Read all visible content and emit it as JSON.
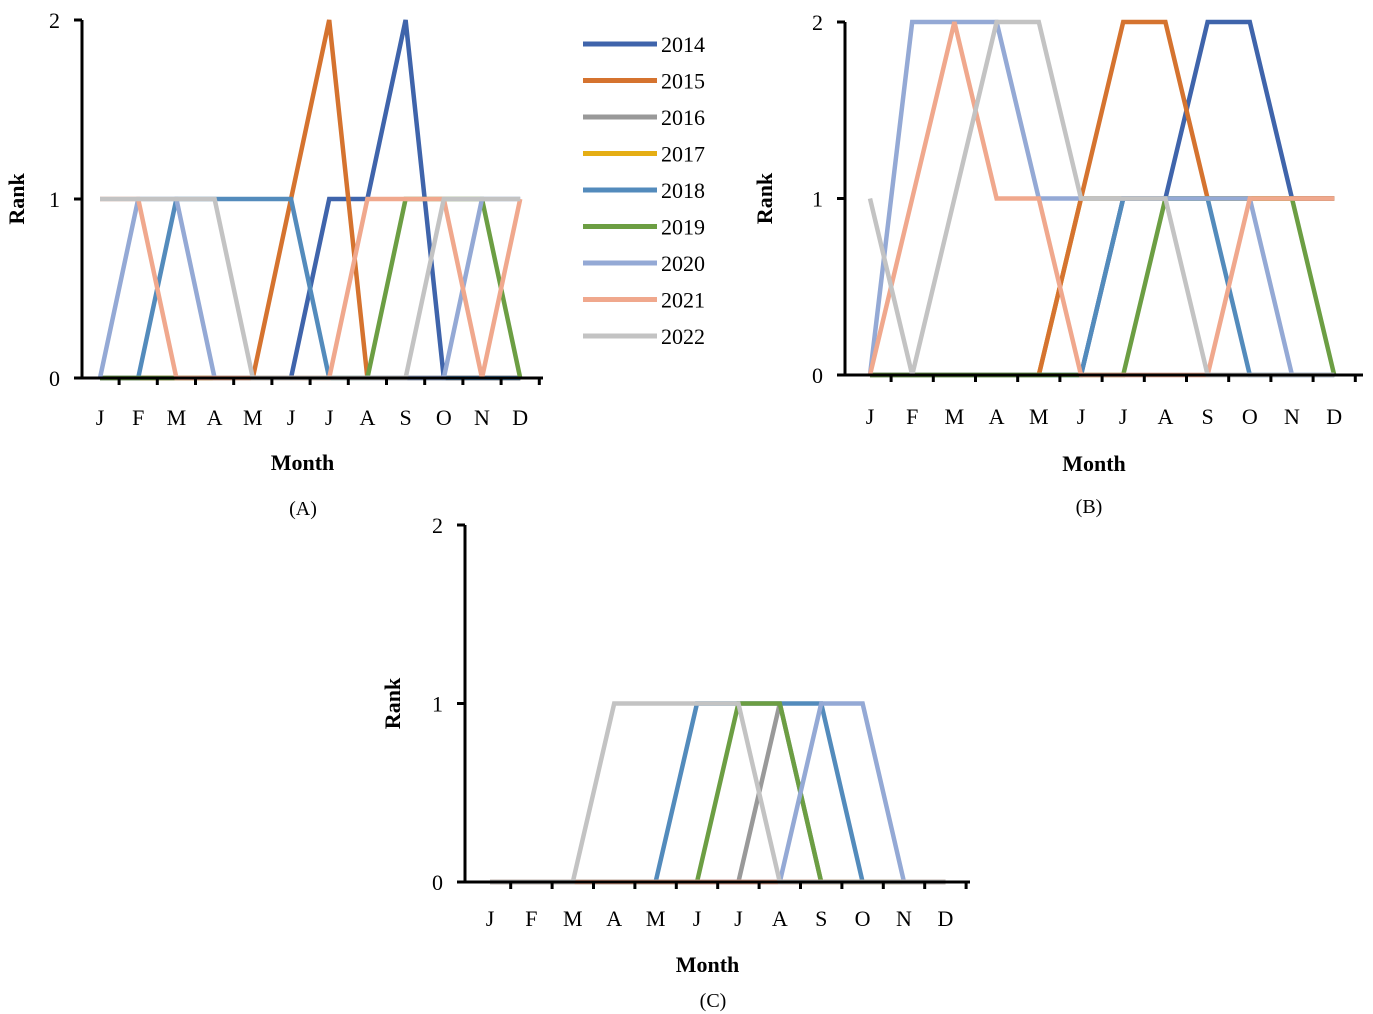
{
  "figure": {
    "legend_entries": [
      "2014",
      "2015",
      "2016",
      "2017",
      "2018",
      "2019",
      "2020",
      "2021",
      "2022"
    ]
  },
  "series_colors": {
    "2014": "#3F64AB",
    "2015": "#D5732F",
    "2016": "#999999",
    "2017": "#E5AE14",
    "2018": "#538BBC",
    "2019": "#6C9E43",
    "2020": "#94A9D5",
    "2021": "#F0A88D",
    "2022": "#C3C3C3"
  },
  "chart_data": [
    {
      "type": "line",
      "panel_label": "(A)",
      "xlabel": "Month",
      "ylabel": "Rank",
      "categories": [
        "J",
        "F",
        "M",
        "A",
        "M",
        "J",
        "J",
        "A",
        "S",
        "O",
        "N",
        "D"
      ],
      "ylim": [
        0,
        2
      ],
      "yticks": [
        "0",
        "1",
        "2"
      ],
      "legend": "right",
      "series": [
        {
          "name": "2014",
          "values": [
            0,
            0,
            0,
            0,
            0,
            0,
            1,
            1,
            2,
            0,
            0,
            0
          ]
        },
        {
          "name": "2015",
          "values": [
            0,
            0,
            0,
            0,
            0,
            1,
            2,
            0,
            0,
            0,
            0,
            0
          ]
        },
        {
          "name": "2016",
          "values": [
            0,
            0,
            0,
            0,
            0,
            0,
            0,
            0,
            0,
            0,
            0,
            0
          ]
        },
        {
          "name": "2017",
          "values": [
            0,
            0,
            0,
            0,
            0,
            0,
            0,
            0,
            0,
            0,
            0,
            0
          ]
        },
        {
          "name": "2018",
          "values": [
            0,
            0,
            1,
            1,
            1,
            1,
            0,
            0,
            0,
            0,
            0,
            0
          ]
        },
        {
          "name": "2019",
          "values": [
            0,
            0,
            0,
            0,
            0,
            0,
            0,
            0,
            1,
            1,
            1,
            0
          ]
        },
        {
          "name": "2020",
          "values": [
            0,
            1,
            1,
            0,
            0,
            0,
            0,
            0,
            0,
            0,
            1,
            1
          ]
        },
        {
          "name": "2021",
          "values": [
            1,
            1,
            0,
            0,
            0,
            0,
            0,
            1,
            1,
            1,
            0,
            1
          ]
        },
        {
          "name": "2022",
          "values": [
            1,
            1,
            1,
            1,
            0,
            0,
            0,
            0,
            0,
            1,
            1,
            1
          ]
        }
      ]
    },
    {
      "type": "line",
      "panel_label": "(B)",
      "xlabel": "Month",
      "ylabel": "Rank",
      "categories": [
        "J",
        "F",
        "M",
        "A",
        "M",
        "J",
        "J",
        "A",
        "S",
        "O",
        "N",
        "D"
      ],
      "ylim": [
        0,
        2
      ],
      "yticks": [
        "0",
        "1",
        "2"
      ],
      "series": [
        {
          "name": "2014",
          "values": [
            0,
            0,
            0,
            0,
            0,
            0,
            1,
            1,
            2,
            2,
            1,
            1
          ]
        },
        {
          "name": "2015",
          "values": [
            0,
            0,
            0,
            0,
            0,
            1,
            2,
            2,
            1,
            1,
            1,
            1
          ]
        },
        {
          "name": "2016",
          "values": [
            0,
            0,
            0,
            0,
            0,
            0,
            0,
            0,
            0,
            0,
            0,
            0
          ]
        },
        {
          "name": "2017",
          "values": [
            0,
            0,
            0,
            0,
            0,
            1,
            1,
            1,
            1,
            1,
            1,
            1
          ]
        },
        {
          "name": "2018",
          "values": [
            0,
            0,
            0,
            0,
            0,
            0,
            1,
            1,
            1,
            0,
            0,
            0
          ]
        },
        {
          "name": "2019",
          "values": [
            0,
            0,
            0,
            0,
            0,
            0,
            0,
            1,
            1,
            1,
            1,
            0
          ]
        },
        {
          "name": "2020",
          "values": [
            0,
            2,
            2,
            2,
            1,
            1,
            1,
            1,
            1,
            1,
            0,
            0
          ]
        },
        {
          "name": "2021",
          "values": [
            0,
            1,
            2,
            1,
            1,
            0,
            0,
            0,
            0,
            1,
            1,
            1
          ]
        },
        {
          "name": "2022",
          "values": [
            1,
            0,
            1,
            2,
            2,
            1,
            1,
            1,
            0,
            0,
            0,
            0
          ]
        }
      ]
    },
    {
      "type": "line",
      "panel_label": "(C)",
      "xlabel": "Month",
      "ylabel": "Rank",
      "categories": [
        "J",
        "F",
        "M",
        "A",
        "M",
        "J",
        "J",
        "A",
        "S",
        "O",
        "N",
        "D"
      ],
      "ylim": [
        0,
        2
      ],
      "yticks": [
        "0",
        "1",
        "2"
      ],
      "series": [
        {
          "name": "2014",
          "values": [
            0,
            0,
            0,
            0,
            0,
            0,
            0,
            0,
            0,
            0,
            0,
            0
          ]
        },
        {
          "name": "2015",
          "values": [
            0,
            0,
            0,
            0,
            0,
            0,
            0,
            0,
            0,
            0,
            0,
            0
          ]
        },
        {
          "name": "2016",
          "values": [
            0,
            0,
            0,
            0,
            0,
            0,
            0,
            1,
            0,
            0,
            0,
            0
          ]
        },
        {
          "name": "2017",
          "values": [
            0,
            0,
            0,
            0,
            0,
            0,
            0,
            0,
            0,
            0,
            0,
            0
          ]
        },
        {
          "name": "2018",
          "values": [
            0,
            0,
            0,
            0,
            0,
            1,
            1,
            1,
            1,
            0,
            0,
            0
          ]
        },
        {
          "name": "2019",
          "values": [
            0,
            0,
            0,
            0,
            0,
            0,
            1,
            1,
            0,
            0,
            0,
            0
          ]
        },
        {
          "name": "2020",
          "values": [
            0,
            0,
            0,
            0,
            0,
            0,
            0,
            0,
            1,
            1,
            0,
            0
          ]
        },
        {
          "name": "2021",
          "values": [
            0,
            0,
            0,
            0,
            0,
            0,
            0,
            0,
            0,
            0,
            0,
            0
          ]
        },
        {
          "name": "2022",
          "values": [
            0,
            0,
            0,
            1,
            1,
            1,
            1,
            0,
            0,
            0,
            0,
            0
          ]
        }
      ]
    }
  ]
}
